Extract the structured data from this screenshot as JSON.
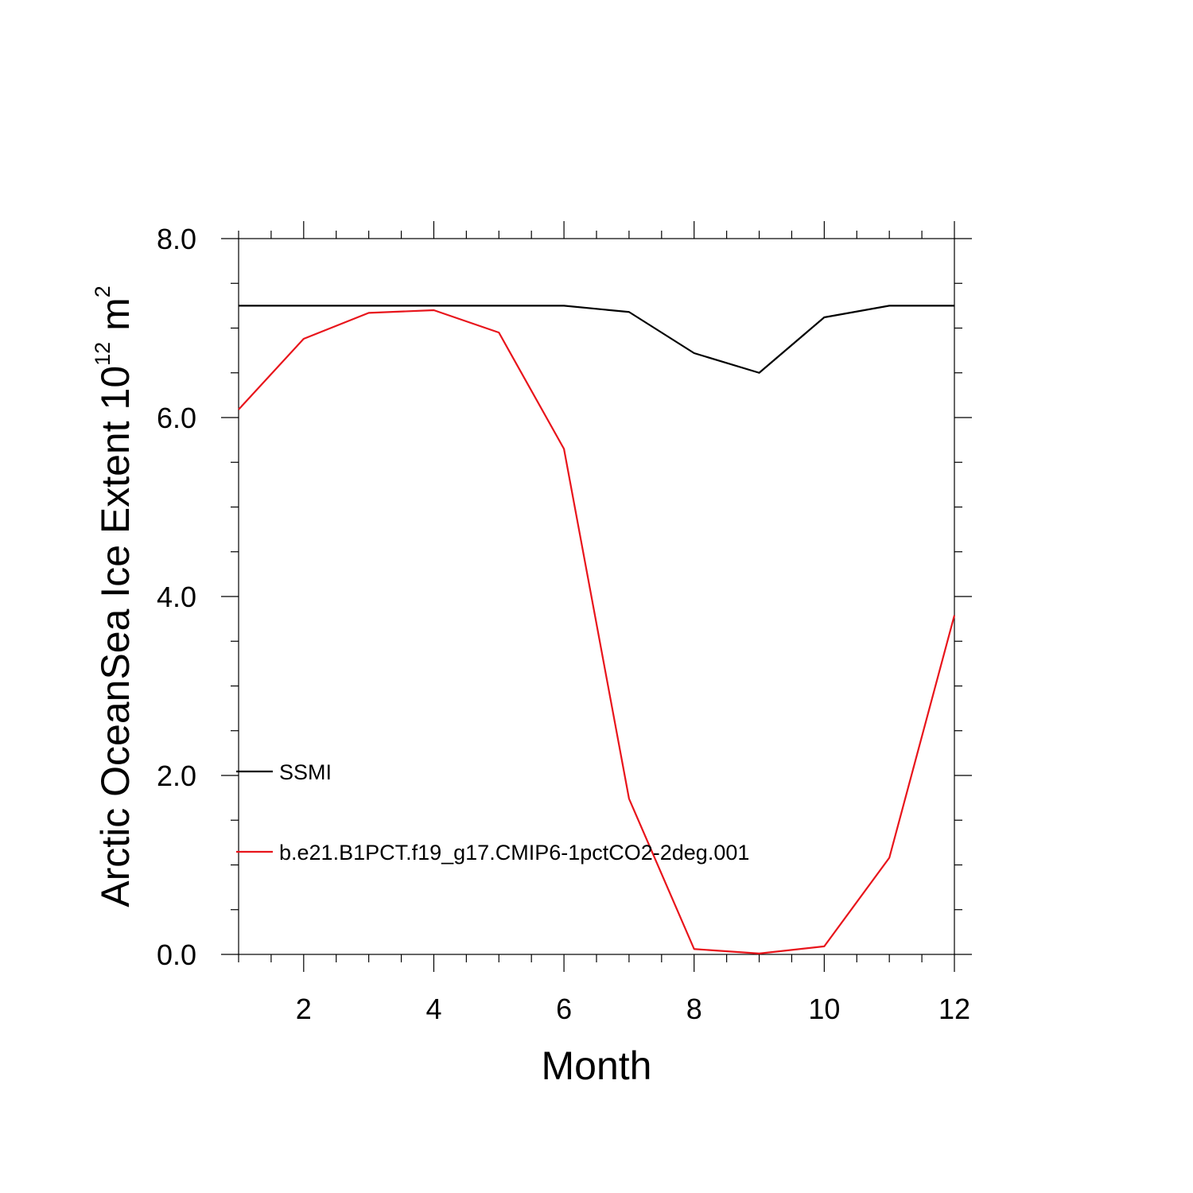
{
  "chart_data": {
    "type": "line",
    "xlabel": "Month",
    "ylabel_main": "Arctic OceanSea Ice Extent 10",
    "ylabel_exp": "12",
    "ylabel_unit": " m",
    "ylabel_unit_exp": "2",
    "xlim": [
      1,
      12
    ],
    "ylim": [
      0,
      8
    ],
    "x_ticks": [
      2,
      4,
      6,
      8,
      10,
      12
    ],
    "x_tick_labels": [
      "2",
      "4",
      "6",
      "8",
      "10",
      "12"
    ],
    "y_ticks": [
      0,
      2,
      4,
      6,
      8
    ],
    "y_tick_labels": [
      "0.0",
      "2.0",
      "4.0",
      "6.0",
      "8.0"
    ],
    "grid": false,
    "legend_position": "left",
    "x": [
      1,
      2,
      3,
      4,
      5,
      6,
      7,
      8,
      9,
      10,
      11,
      12
    ],
    "series": [
      {
        "name": "SSMI",
        "color": "#000000",
        "values": [
          7.25,
          7.25,
          7.25,
          7.25,
          7.25,
          7.25,
          7.18,
          6.72,
          6.5,
          7.12,
          7.25,
          7.25
        ]
      },
      {
        "name": "b.e21.B1PCT.f19_g17.CMIP6-1pctCO2-2deg.001",
        "color": "#e8141b",
        "values": [
          6.09,
          6.88,
          7.17,
          7.2,
          6.95,
          5.65,
          1.74,
          0.06,
          0.01,
          0.09,
          1.08,
          3.79
        ]
      }
    ]
  }
}
